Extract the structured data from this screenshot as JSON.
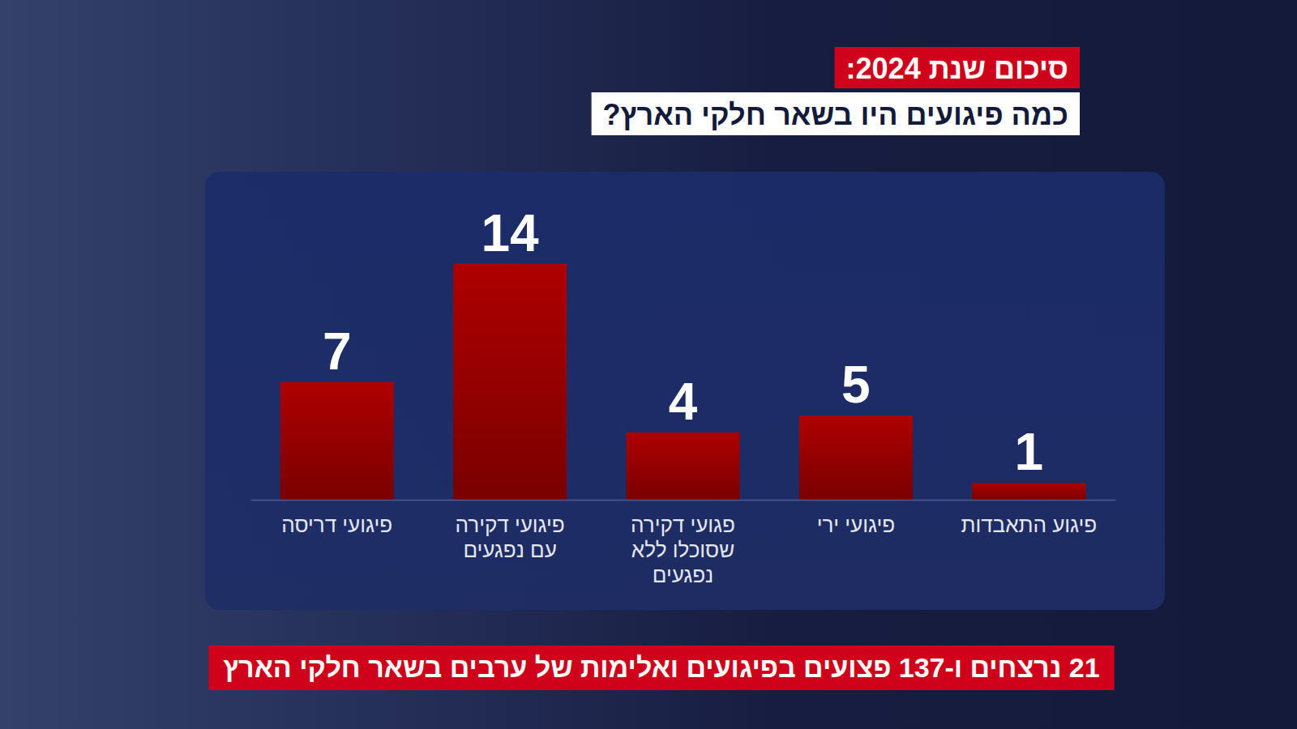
{
  "chart_data": {
    "type": "bar",
    "title": "סיכום שנת 2024:",
    "subtitle": "כמה פיגועים היו בשאר חלקי הארץ?",
    "categories": [
      "פיגועי דריסה",
      "פיגועי דקירה עם נפגעים",
      "פגועי דקירה שסוכלו ללא נפגעים",
      "פיגועי ירי",
      "פיגוע התאבדות"
    ],
    "values": [
      7,
      14,
      4,
      5,
      1
    ],
    "color": "#a80000",
    "ylim": [
      0,
      14
    ],
    "data_labels": true,
    "tick_labels": "x",
    "grid": false,
    "annotations": [
      "21 נרצחים ו-137 פצועים בפיגועים ואלימות של ערבים בשאר חלקי הארץ"
    ]
  }
}
